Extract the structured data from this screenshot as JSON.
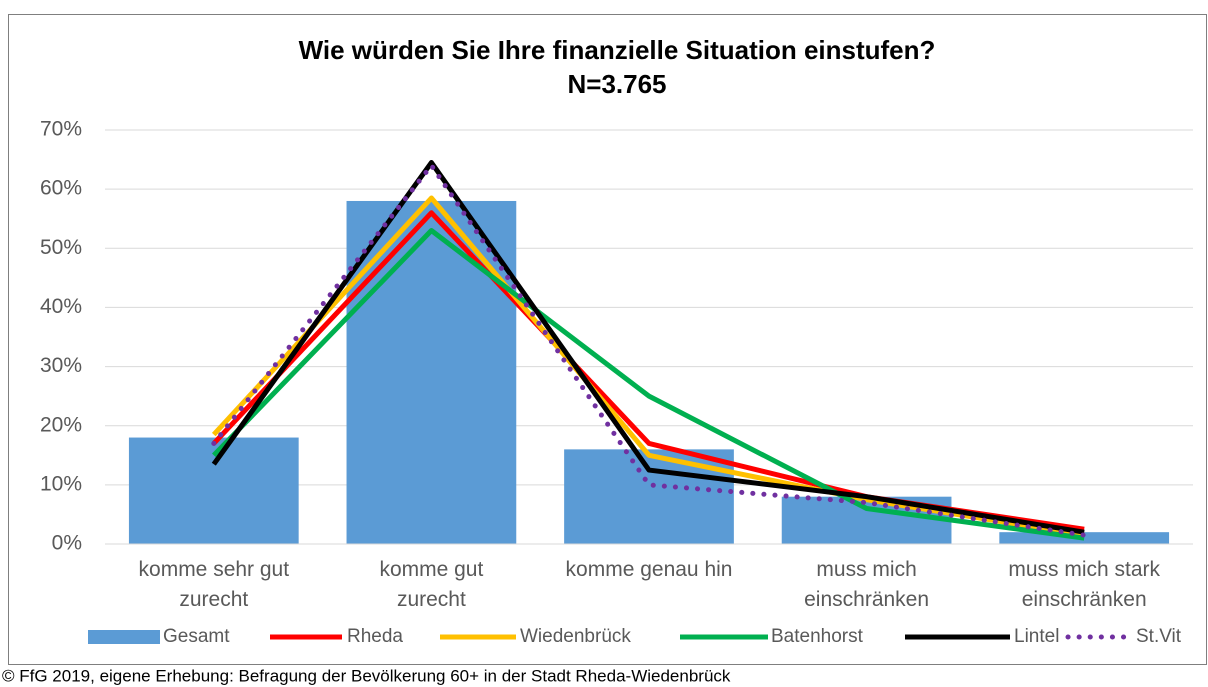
{
  "chart_data": {
    "type": "bar",
    "title": "Wie würden Sie Ihre finanzielle Situation einstufen?",
    "subtitle": "N=3.765",
    "source": "© FfG 2019, eigene Erhebung: Befragung der Bevölkerung 60+ in der Stadt Rheda-Wiedenbrück",
    "categories": [
      "komme sehr gut\nzurecht",
      "komme gut\nzurecht",
      "komme genau hin",
      "muss mich\neinschränken",
      "muss mich stark\neinschränken"
    ],
    "series": [
      {
        "name": "Gesamt",
        "type": "bar",
        "color": "#5b9bd5",
        "values": [
          18,
          58,
          16,
          8,
          2
        ]
      },
      {
        "name": "Rheda",
        "type": "line",
        "color": "#ff0000",
        "values": [
          17,
          56,
          17,
          8,
          2.5
        ]
      },
      {
        "name": "Wiedenbrück",
        "type": "line",
        "color": "#ffc000",
        "values": [
          18.5,
          58.5,
          15,
          7.5,
          1.5
        ]
      },
      {
        "name": "Batenhorst",
        "type": "line",
        "color": "#00b050",
        "values": [
          15,
          53,
          25,
          6,
          1
        ]
      },
      {
        "name": "Lintel",
        "type": "line",
        "color": "#000000",
        "values": [
          13.5,
          64.5,
          12.5,
          8,
          2
        ]
      },
      {
        "name": "St.Vit",
        "type": "line",
        "color": "#7030a0",
        "line_style": "dotted",
        "values": [
          17,
          64,
          10,
          7,
          1.5
        ]
      }
    ],
    "ylim": [
      0,
      70
    ],
    "yticks": [
      {
        "value": 0,
        "label": "0%"
      },
      {
        "value": 10,
        "label": "10%"
      },
      {
        "value": 20,
        "label": "20%"
      },
      {
        "value": 30,
        "label": "30%"
      },
      {
        "value": 40,
        "label": "40%"
      },
      {
        "value": 50,
        "label": "50%"
      },
      {
        "value": 60,
        "label": "60%"
      },
      {
        "value": 70,
        "label": "70%"
      }
    ],
    "grid": true,
    "legend": "bottom"
  }
}
